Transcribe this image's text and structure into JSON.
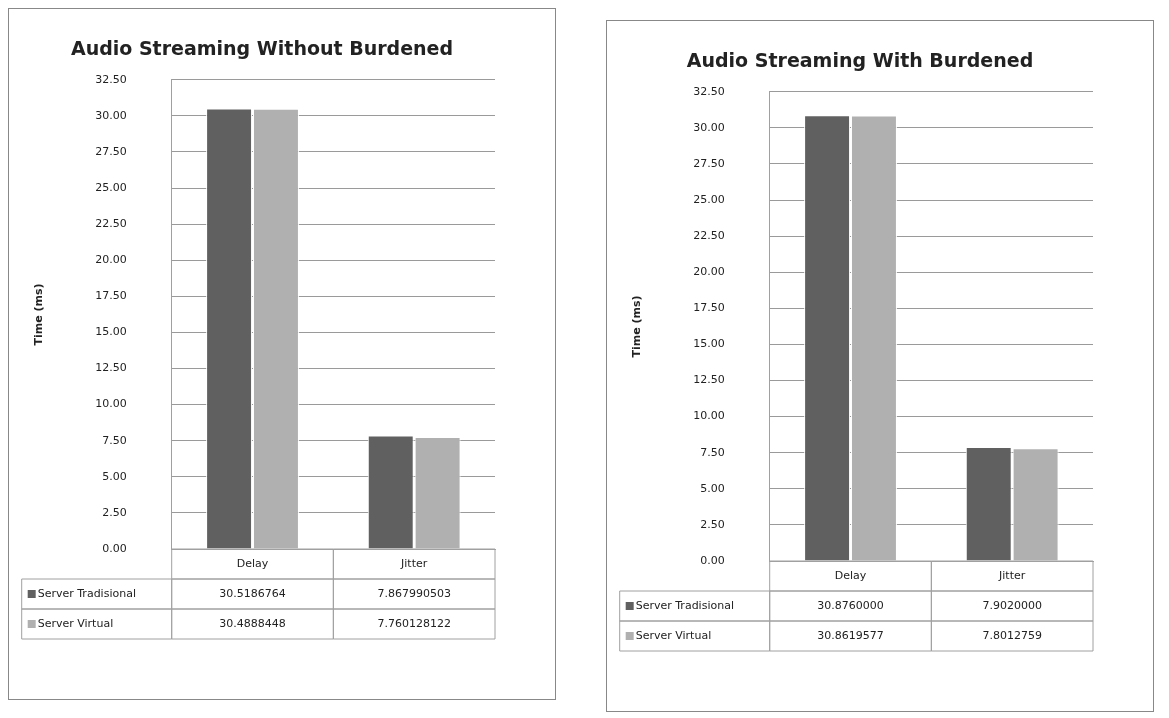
{
  "chart_data": [
    {
      "type": "bar",
      "title": "Audio Streaming Without Burdened",
      "ylabel": "Time (ms)",
      "categories": [
        "Delay",
        "Jitter"
      ],
      "series": [
        {
          "name": "Server Tradisional",
          "color": "#606060",
          "values": [
            30.5186764,
            7.867990503
          ],
          "value_labels": [
            "30.5186764",
            "7.867990503"
          ]
        },
        {
          "name": "Server Virtual",
          "color": "#b0b0b0",
          "values": [
            30.4888448,
            7.760128122
          ],
          "value_labels": [
            "30.4888448",
            "7.760128122"
          ]
        }
      ],
      "ylim": [
        0,
        32.5
      ],
      "yticks": [
        {
          "value": 0,
          "label": "0.00"
        },
        {
          "value": 2.5,
          "label": "2.50"
        },
        {
          "value": 5,
          "label": "5.00"
        },
        {
          "value": 7.5,
          "label": "7.50"
        },
        {
          "value": 10,
          "label": "10.00"
        },
        {
          "value": 12.5,
          "label": "12.50"
        },
        {
          "value": 15,
          "label": "15.00"
        },
        {
          "value": 17.5,
          "label": "17.50"
        },
        {
          "value": 20,
          "label": "20.00"
        },
        {
          "value": 22.5,
          "label": "22.50"
        },
        {
          "value": 25,
          "label": "25.00"
        },
        {
          "value": 27.5,
          "label": "27.50"
        },
        {
          "value": 30,
          "label": "30.00"
        },
        {
          "value": 32.5,
          "label": "32.50"
        }
      ],
      "grid": "y",
      "legend": "bottom"
    },
    {
      "type": "bar",
      "title": "Audio Streaming With Burdened",
      "ylabel": "Time (ms)",
      "categories": [
        "Delay",
        "Jitter"
      ],
      "series": [
        {
          "name": "Server Tradisional",
          "color": "#606060",
          "values": [
            30.876,
            7.902
          ],
          "value_labels": [
            "30.8760000",
            "7.9020000"
          ]
        },
        {
          "name": "Server Virtual",
          "color": "#b0b0b0",
          "values": [
            30.8619577,
            7.8012759
          ],
          "value_labels": [
            "30.8619577",
            "7.8012759"
          ]
        }
      ],
      "ylim": [
        0,
        32.5
      ],
      "yticks": [
        {
          "value": 0,
          "label": "0.00"
        },
        {
          "value": 2.5,
          "label": "2.50"
        },
        {
          "value": 5,
          "label": "5.00"
        },
        {
          "value": 7.5,
          "label": "7.50"
        },
        {
          "value": 10,
          "label": "10.00"
        },
        {
          "value": 12.5,
          "label": "12.50"
        },
        {
          "value": 15,
          "label": "15.00"
        },
        {
          "value": 17.5,
          "label": "17.50"
        },
        {
          "value": 20,
          "label": "20.00"
        },
        {
          "value": 22.5,
          "label": "22.50"
        },
        {
          "value": 25,
          "label": "25.00"
        },
        {
          "value": 27.5,
          "label": "27.50"
        },
        {
          "value": 30,
          "label": "30.00"
        },
        {
          "value": 32.5,
          "label": "32.50"
        }
      ],
      "grid": "y",
      "legend": "bottom"
    }
  ]
}
